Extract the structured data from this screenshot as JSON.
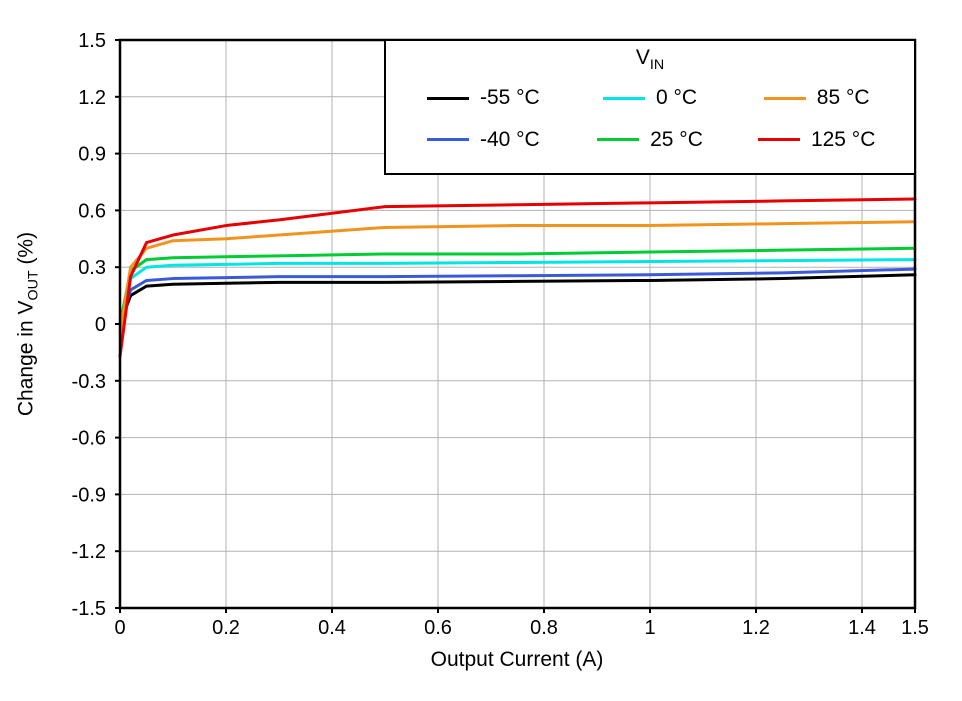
{
  "chart_data": {
    "type": "line",
    "title": "",
    "xlabel": "Output Current (A)",
    "ylabel": "Change in V_OUT (%)",
    "ylabel_parts": {
      "main": "Change in V",
      "sub": "OUT",
      "suffix": " (%)"
    },
    "legend_title_parts": {
      "main": "V",
      "sub": "IN"
    },
    "xlim": [
      0,
      1.5
    ],
    "ylim": [
      -1.5,
      1.5
    ],
    "x_ticks": [
      0,
      0.2,
      0.4,
      0.6,
      0.8,
      1,
      1.2,
      1.4,
      1.5
    ],
    "x_tick_labels": [
      "0",
      "0.2",
      "0.4",
      "0.6",
      "0.8",
      "1",
      "1.2",
      "1.4",
      "1.5"
    ],
    "y_ticks": [
      1.5,
      1.2,
      0.9,
      0.6,
      0.3,
      0,
      -0.3,
      -0.6,
      -0.9,
      -1.2,
      -1.5
    ],
    "y_tick_labels": [
      "1.5",
      "1.2",
      "0.9",
      "0.6",
      "0.3",
      "0",
      "-0.3",
      "-0.6",
      "-0.9",
      "-1.2",
      "-1.5"
    ],
    "grid": true,
    "grid_color": "#b3b3b3",
    "legend_position": "top-right",
    "legend_display_order": [
      0,
      2,
      4,
      1,
      3,
      5
    ],
    "x": [
      0,
      0.02,
      0.05,
      0.1,
      0.2,
      0.3,
      0.5,
      0.75,
      1.0,
      1.25,
      1.5
    ],
    "series": [
      {
        "name": "-55 °C",
        "color": "#000000",
        "y": [
          0.0,
          0.15,
          0.2,
          0.21,
          0.215,
          0.22,
          0.22,
          0.225,
          0.23,
          0.24,
          0.26
        ]
      },
      {
        "name": "-40 °C",
        "color": "#3a5bd9",
        "y": [
          0.0,
          0.18,
          0.23,
          0.24,
          0.245,
          0.25,
          0.25,
          0.255,
          0.26,
          0.27,
          0.29
        ]
      },
      {
        "name": "0 °C",
        "color": "#00e5e5",
        "y": [
          0.0,
          0.24,
          0.3,
          0.31,
          0.315,
          0.32,
          0.32,
          0.325,
          0.33,
          0.335,
          0.34
        ]
      },
      {
        "name": "25 °C",
        "color": "#00cc33",
        "y": [
          0.0,
          0.28,
          0.34,
          0.35,
          0.355,
          0.36,
          0.37,
          0.37,
          0.38,
          0.39,
          0.4
        ]
      },
      {
        "name": "85 °C",
        "color": "#f0941d",
        "y": [
          -0.05,
          0.3,
          0.4,
          0.44,
          0.45,
          0.47,
          0.51,
          0.52,
          0.52,
          0.53,
          0.54
        ]
      },
      {
        "name": "125 °C",
        "color": "#e60000",
        "y": [
          -0.17,
          0.25,
          0.43,
          0.47,
          0.52,
          0.55,
          0.62,
          0.63,
          0.64,
          0.65,
          0.66
        ]
      }
    ]
  }
}
